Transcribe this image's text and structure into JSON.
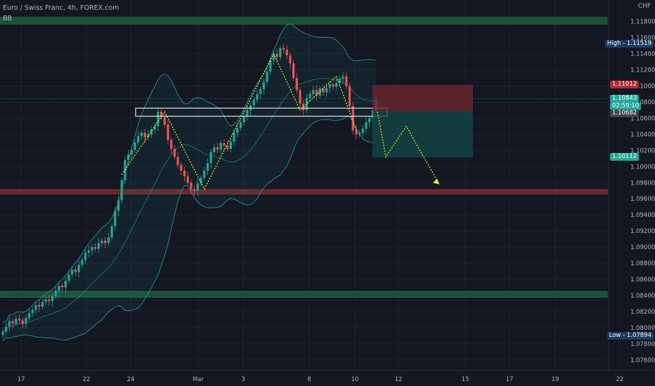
{
  "header": {
    "title": "Euro / Swiss Franc, 4h, FOREX.com",
    "indicator": "BB",
    "currency": "CHF"
  },
  "price_tags": {
    "high": {
      "label": "High",
      "value": "1.11519",
      "price": 1.11519,
      "color": "#1e3a5f"
    },
    "low": {
      "label": "Low",
      "value": "1.07894",
      "price": 1.07894,
      "color": "#1e3a5f"
    },
    "top_tp": {
      "value": "1.11800",
      "price": 1.118
    },
    "sl": {
      "value": "1.11012",
      "price": 1.11012,
      "color": "#b22833"
    },
    "last": {
      "value": "1.10843",
      "price": 1.10843,
      "countdown": "02:59:10",
      "color": "#26a69a"
    },
    "entry": {
      "value": "1.10682",
      "price": 1.10682,
      "color": "#434651"
    },
    "tp": {
      "value": "1.10112",
      "price": 1.10112,
      "color": "#22ab94"
    }
  },
  "colors": {
    "background": "#131722",
    "up": "#26a69a",
    "down": "#ef5350",
    "bb": "#2aa198",
    "zone_green": "#1f5a3a",
    "zone_red": "#7a2a30",
    "projection": "#e6f23c"
  },
  "chart_data": {
    "type": "candlestick",
    "title": "Euro / Swiss Franc, 4h, FOREX.com",
    "ylim": [
      1.0745,
      1.1205
    ],
    "y_ticks": [
      "1.11800",
      "1.11600",
      "1.11400",
      "1.11200",
      "1.11000",
      "1.10800",
      "1.10600",
      "1.10400",
      "1.10200",
      "1.10000",
      "1.09800",
      "1.09600",
      "1.09400",
      "1.09200",
      "1.09000",
      "1.08800",
      "1.08600",
      "1.08400",
      "1.08200",
      "1.08000",
      "1.07800",
      "1.07600"
    ],
    "x_ticks": [
      "17",
      "22",
      "24",
      "Mar",
      "3",
      "8",
      "10",
      "12",
      "15",
      "17",
      "19",
      "22"
    ],
    "grid": true,
    "candles_close": [
      1.0795,
      1.0801,
      1.0808,
      1.0805,
      1.0811,
      1.0809,
      1.0805,
      1.0812,
      1.0818,
      1.0822,
      1.0828,
      1.0826,
      1.0832,
      1.0835,
      1.0833,
      1.0839,
      1.0846,
      1.0852,
      1.085,
      1.0858,
      1.0866,
      1.0872,
      1.0869,
      1.0878,
      1.0884,
      1.0893,
      1.0896,
      1.09,
      1.0898,
      1.0905,
      1.0908,
      1.0905,
      1.0912,
      1.0926,
      1.0945,
      1.0958,
      1.0983,
      1.1008,
      1.1015,
      1.1021,
      1.103,
      1.1038,
      1.1042,
      1.1036,
      1.104,
      1.1046,
      1.105,
      1.1068,
      1.1061,
      1.1052,
      1.1033,
      1.1022,
      1.1012,
      1.1002,
      1.0995,
      1.0988,
      1.098,
      1.0972,
      1.097,
      1.0979,
      1.0986,
      1.0995,
      1.1004,
      1.1018,
      1.1024,
      1.1021,
      1.1029,
      1.1026,
      1.1022,
      1.1031,
      1.1042,
      1.1048,
      1.1055,
      1.1063,
      1.107,
      1.1076,
      1.1083,
      1.109,
      1.1096,
      1.1105,
      1.1118,
      1.1132,
      1.114,
      1.1136,
      1.1147,
      1.1145,
      1.1138,
      1.1128,
      1.111,
      1.1095,
      1.1078,
      1.107,
      1.1085,
      1.109,
      1.1095,
      1.1088,
      1.1097,
      1.1092,
      1.1098,
      1.1102,
      1.1099,
      1.1104,
      1.1109,
      1.1112,
      1.11,
      1.1075,
      1.1045,
      1.104,
      1.1042,
      1.1047,
      1.1055,
      1.106,
      1.107,
      1.1084
    ],
    "zones": [
      {
        "kind": "supply-demand",
        "from": 1.11767,
        "to": 1.11853,
        "color": "green"
      },
      {
        "kind": "resistance",
        "from": 1.0966,
        "to": 1.09715,
        "color": "red"
      },
      {
        "kind": "support",
        "from": 1.08376,
        "to": 1.08451,
        "color": "green"
      }
    ],
    "projection": [
      1.1068,
      1.1012,
      1.105,
      1.0978
    ]
  }
}
